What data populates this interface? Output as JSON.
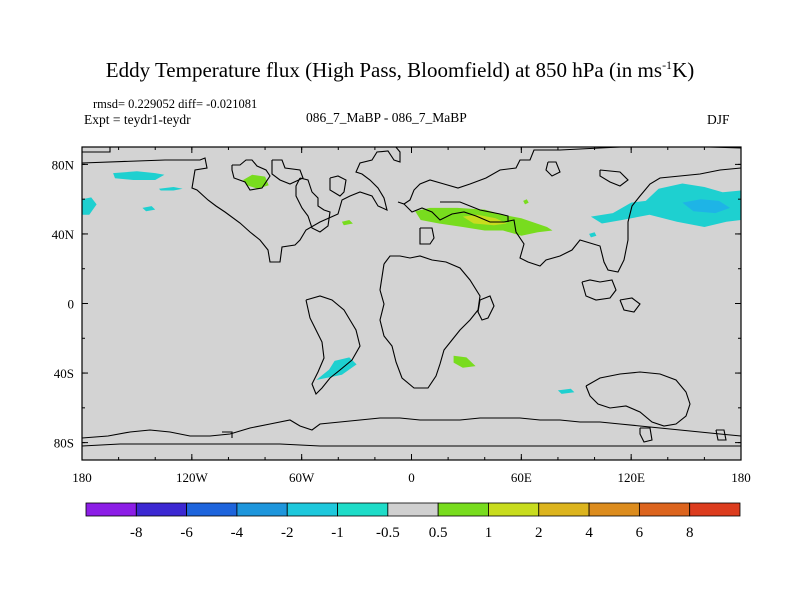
{
  "header": {
    "title_main": "Eddy Temperature flux (High Pass, Bloomfield) at 850 hPa (in ms",
    "title_sup": "-1",
    "title_end": "K)",
    "stats": "rmsd= 0.229052 diff= -0.021081",
    "expt": "Expt = teydr1-teydr",
    "run": "086_7_MaBP - 086_7_MaBP",
    "season": "DJF"
  },
  "chart_data": {
    "type": "heatmap",
    "title": "Eddy Temperature flux (High Pass, Bloomfield) at 850 hPa (in ms-1K)",
    "xlim": [
      -180,
      180
    ],
    "ylim": [
      -90,
      90
    ],
    "x_ticks": [
      {
        "value": -180,
        "label": "180"
      },
      {
        "value": -120,
        "label": "120W"
      },
      {
        "value": -60,
        "label": "60W"
      },
      {
        "value": 0,
        "label": "0"
      },
      {
        "value": 60,
        "label": "60E"
      },
      {
        "value": 120,
        "label": "120E"
      },
      {
        "value": 180,
        "label": "180"
      }
    ],
    "y_ticks": [
      {
        "value": 80,
        "label": "80N"
      },
      {
        "value": 40,
        "label": "40N"
      },
      {
        "value": 0,
        "label": "0"
      },
      {
        "value": -40,
        "label": "40S"
      },
      {
        "value": -80,
        "label": "80S"
      }
    ],
    "colorbar": {
      "levels": [
        "-8",
        "-6",
        "-4",
        "-2",
        "-1",
        "-0.5",
        "0.5",
        "1",
        "2",
        "4",
        "6",
        "8"
      ],
      "colors": [
        "#8c1ee6",
        "#3c28d2",
        "#1e64dc",
        "#1e96dc",
        "#1ec8dc",
        "#1edcc8",
        "#d0d0d0",
        "#78dc1e",
        "#c8dc1e",
        "#dcb41e",
        "#dc8c1e",
        "#dc641e",
        "#dc3c1e"
      ]
    },
    "background_color": "#d3d3d3",
    "regions": [
      {
        "name": "n-pacific-north",
        "color": "#1ed0d0",
        "points": [
          [
            -163,
            75
          ],
          [
            -150,
            76
          ],
          [
            -140,
            75
          ],
          [
            -135,
            74
          ],
          [
            -140,
            71
          ],
          [
            -152,
            71
          ],
          [
            -162,
            72
          ]
        ]
      },
      {
        "name": "n-pacific-small",
        "color": "#1ed0d0",
        "points": [
          [
            -138,
            66
          ],
          [
            -130,
            67
          ],
          [
            -125,
            66
          ],
          [
            -130,
            65
          ],
          [
            -137,
            65
          ]
        ]
      },
      {
        "name": "n-pacific-west",
        "color": "#1ed0d0",
        "points": [
          [
            -180,
            60
          ],
          [
            -175,
            61
          ],
          [
            -172,
            57
          ],
          [
            -176,
            51
          ],
          [
            -180,
            51
          ]
        ]
      },
      {
        "name": "n-pacific-dot",
        "color": "#1ed0d0",
        "points": [
          [
            -147,
            55
          ],
          [
            -142,
            56
          ],
          [
            -140,
            54
          ],
          [
            -145,
            53
          ]
        ]
      },
      {
        "name": "arctic-canada",
        "color": "#78dc1e",
        "points": [
          [
            -92,
            71
          ],
          [
            -87,
            74
          ],
          [
            -80,
            73
          ],
          [
            -78,
            68
          ],
          [
            -84,
            66
          ],
          [
            -90,
            68
          ]
        ]
      },
      {
        "name": "europe-main",
        "color": "#78dc1e",
        "points": [
          [
            2,
            53
          ],
          [
            10,
            55
          ],
          [
            25,
            55
          ],
          [
            40,
            54
          ],
          [
            50,
            51
          ],
          [
            60,
            49
          ],
          [
            74,
            44
          ],
          [
            77,
            42
          ],
          [
            69,
            41
          ],
          [
            60,
            39
          ],
          [
            50,
            42
          ],
          [
            40,
            42
          ],
          [
            28,
            44
          ],
          [
            15,
            46
          ],
          [
            5,
            48
          ]
        ]
      },
      {
        "name": "europe-core",
        "color": "#c8dc1e",
        "points": [
          [
            28,
            50
          ],
          [
            36,
            51
          ],
          [
            46,
            49
          ],
          [
            52,
            46
          ],
          [
            45,
            45
          ],
          [
            34,
            46
          ]
        ]
      },
      {
        "name": "med-small",
        "color": "#78dc1e",
        "points": [
          [
            -38,
            47
          ],
          [
            -34,
            48
          ],
          [
            -32,
            46
          ],
          [
            -37,
            45
          ]
        ]
      },
      {
        "name": "mideast-small",
        "color": "#78dc1e",
        "points": [
          [
            61,
            59
          ],
          [
            63,
            60
          ],
          [
            64,
            58
          ],
          [
            62,
            57
          ]
        ]
      },
      {
        "name": "east-asia",
        "color": "#1ed0d0",
        "points": [
          [
            98,
            50
          ],
          [
            110,
            52
          ],
          [
            120,
            58
          ],
          [
            128,
            59
          ],
          [
            135,
            66
          ],
          [
            148,
            69
          ],
          [
            160,
            67
          ],
          [
            170,
            64
          ],
          [
            180,
            65
          ],
          [
            180,
            48
          ],
          [
            172,
            47
          ],
          [
            160,
            44
          ],
          [
            145,
            47
          ],
          [
            130,
            51
          ],
          [
            115,
            48
          ],
          [
            104,
            46
          ]
        ]
      },
      {
        "name": "east-asia-core",
        "color": "#1eb4e6",
        "points": [
          [
            148,
            58
          ],
          [
            158,
            60
          ],
          [
            168,
            59
          ],
          [
            174,
            55
          ],
          [
            166,
            52
          ],
          [
            154,
            53
          ]
        ]
      },
      {
        "name": "japan-small",
        "color": "#1ed0d0",
        "points": [
          [
            97,
            40
          ],
          [
            100,
            41
          ],
          [
            101,
            39
          ],
          [
            98,
            38
          ]
        ]
      },
      {
        "name": "south-america",
        "color": "#1ed0d0",
        "points": [
          [
            -42,
            -33
          ],
          [
            -34,
            -31
          ],
          [
            -30,
            -35
          ],
          [
            -38,
            -41
          ],
          [
            -52,
            -44
          ],
          [
            -45,
            -38
          ]
        ]
      },
      {
        "name": "south-atlantic-green",
        "color": "#78dc1e",
        "points": [
          [
            23,
            -30
          ],
          [
            30,
            -31
          ],
          [
            35,
            -36
          ],
          [
            28,
            -37
          ],
          [
            23,
            -34
          ]
        ]
      },
      {
        "name": "indian-ocean",
        "color": "#1ed0d0",
        "points": [
          [
            80,
            -50
          ],
          [
            87,
            -49
          ],
          [
            89,
            -51
          ],
          [
            82,
            -52
          ]
        ]
      }
    ]
  }
}
